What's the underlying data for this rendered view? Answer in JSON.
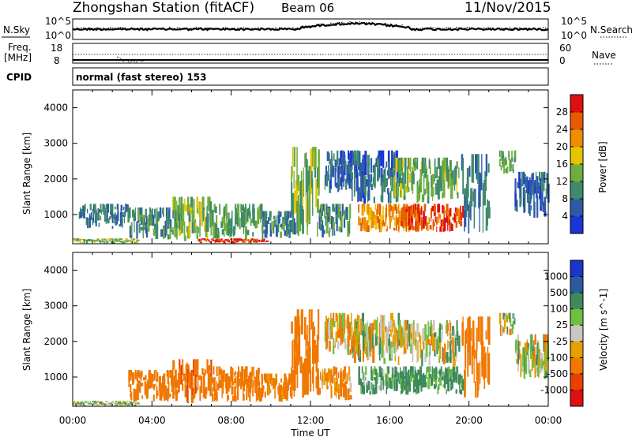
{
  "header": {
    "station": "Zhongshan Station (fitACF)",
    "beam": "Beam 06",
    "date": "11/Nov/2015"
  },
  "status": {
    "nsky_label": "N.Sky",
    "nsky_ticks": [
      "10^5",
      "10^0"
    ],
    "nsearch_label": "N.Search",
    "nsearch_ticks": [
      "10^5",
      "10^0"
    ],
    "freq_label_1": "Freq.",
    "freq_label_2": "[MHz]",
    "freq_ticks": [
      "18",
      "8"
    ],
    "nave_label": "Nave",
    "nave_ticks": [
      "60",
      "0"
    ],
    "cpid_label": "CPID",
    "cpid_text": "normal (fast stereo) 153"
  },
  "colors": {
    "power": [
      "#1a35d6",
      "#2e5aa8",
      "#3f8a6a",
      "#6fae3c",
      "#e6c400",
      "#f08c00",
      "#e85a00",
      "#e01010"
    ],
    "velocity": [
      "#1a35c8",
      "#2a5aa0",
      "#3d8a5c",
      "#70bf40",
      "#c8c8c0",
      "#e8a000",
      "#f07800",
      "#e84000",
      "#e01010"
    ]
  },
  "chart_data": [
    {
      "type": "heatmap",
      "name": "power",
      "xlabel": "",
      "ylabel": "Slant Range [km]",
      "x_ticks": [
        "00:00",
        "04:00",
        "08:00",
        "12:00",
        "16:00",
        "20:00",
        "00:00"
      ],
      "yticks": [
        "4000",
        "3000",
        "2000",
        "1000"
      ],
      "ylim": [
        180,
        4500
      ],
      "colorbar_label": "Power [dB]",
      "colorbar_ticks": [
        "28",
        "24",
        "20",
        "16",
        "12",
        "8",
        "4"
      ],
      "colorbar_range": [
        0,
        32
      ],
      "clusters": [
        {
          "t": [
            0.0,
            3.3
          ],
          "r": [
            190,
            330
          ],
          "v": 14
        },
        {
          "t": [
            0.3,
            2.8
          ],
          "r": [
            600,
            1300
          ],
          "v": 8
        },
        {
          "t": [
            2.8,
            5.2
          ],
          "r": [
            300,
            1200
          ],
          "v": 10
        },
        {
          "t": [
            5.0,
            7.0
          ],
          "r": [
            250,
            1500
          ],
          "v": 14
        },
        {
          "t": [
            6.3,
            9.8
          ],
          "r": [
            190,
            330
          ],
          "v": 28
        },
        {
          "t": [
            7.0,
            9.6
          ],
          "r": [
            300,
            1300
          ],
          "v": 12
        },
        {
          "t": [
            9.5,
            11.2
          ],
          "r": [
            300,
            1100
          ],
          "v": 9
        },
        {
          "t": [
            11.0,
            12.4
          ],
          "r": [
            300,
            2900
          ],
          "v": 14
        },
        {
          "t": [
            12.4,
            14.0
          ],
          "r": [
            350,
            1300
          ],
          "v": 10
        },
        {
          "t": [
            12.7,
            14.4
          ],
          "r": [
            1600,
            2800
          ],
          "v": 7
        },
        {
          "t": [
            14.0,
            16.5
          ],
          "r": [
            1300,
            2800
          ],
          "v": 7
        },
        {
          "t": [
            14.4,
            17.5
          ],
          "r": [
            500,
            1300
          ],
          "v": 22
        },
        {
          "t": [
            16.0,
            19.5
          ],
          "r": [
            1300,
            2600
          ],
          "v": 13
        },
        {
          "t": [
            16.5,
            19.7
          ],
          "r": [
            500,
            1300
          ],
          "v": 27
        },
        {
          "t": [
            19.6,
            21.0
          ],
          "r": [
            400,
            2700
          ],
          "v": 8
        },
        {
          "t": [
            21.5,
            22.3
          ],
          "r": [
            2100,
            2800
          ],
          "v": 12
        },
        {
          "t": [
            22.3,
            24.0
          ],
          "r": [
            900,
            2200
          ],
          "v": 6
        }
      ]
    },
    {
      "type": "heatmap",
      "name": "velocity",
      "xlabel": "Time UT",
      "ylabel": "Slant Range [km]",
      "x_ticks": [
        "00:00",
        "04:00",
        "08:00",
        "12:00",
        "16:00",
        "20:00",
        "00:00"
      ],
      "yticks": [
        "4000",
        "3000",
        "2000",
        "1000"
      ],
      "ylim": [
        180,
        4500
      ],
      "colorbar_label": "Velocity [m s^-1]",
      "colorbar_ticks": [
        "1000",
        "500",
        "100",
        "25",
        "-25",
        "-100",
        "-500",
        "-1000"
      ],
      "clusters": [
        {
          "t": [
            0.0,
            3.3
          ],
          "r": [
            190,
            330
          ],
          "v": 50
        },
        {
          "t": [
            2.8,
            5.2
          ],
          "r": [
            300,
            1200
          ],
          "v": -300
        },
        {
          "t": [
            5.0,
            7.0
          ],
          "r": [
            250,
            1500
          ],
          "v": -400
        },
        {
          "t": [
            7.0,
            9.6
          ],
          "r": [
            300,
            1300
          ],
          "v": -300
        },
        {
          "t": [
            9.5,
            11.2
          ],
          "r": [
            300,
            1100
          ],
          "v": -200
        },
        {
          "t": [
            11.0,
            12.4
          ],
          "r": [
            300,
            2900
          ],
          "v": -350
        },
        {
          "t": [
            12.4,
            14.0
          ],
          "r": [
            350,
            1300
          ],
          "v": -150
        },
        {
          "t": [
            12.7,
            14.4
          ],
          "r": [
            1600,
            2800
          ],
          "v": -50
        },
        {
          "t": [
            14.0,
            16.5
          ],
          "r": [
            1300,
            2800
          ],
          "v": 0
        },
        {
          "t": [
            14.4,
            17.5
          ],
          "r": [
            500,
            1300
          ],
          "v": 150
        },
        {
          "t": [
            16.0,
            19.5
          ],
          "r": [
            1300,
            2600
          ],
          "v": 0
        },
        {
          "t": [
            16.5,
            19.7
          ],
          "r": [
            500,
            1300
          ],
          "v": 200
        },
        {
          "t": [
            19.6,
            21.0
          ],
          "r": [
            400,
            2700
          ],
          "v": -300
        },
        {
          "t": [
            21.5,
            22.3
          ],
          "r": [
            2100,
            2800
          ],
          "v": 0
        },
        {
          "t": [
            22.3,
            24.0
          ],
          "r": [
            900,
            2200
          ],
          "v": 0
        }
      ]
    }
  ]
}
